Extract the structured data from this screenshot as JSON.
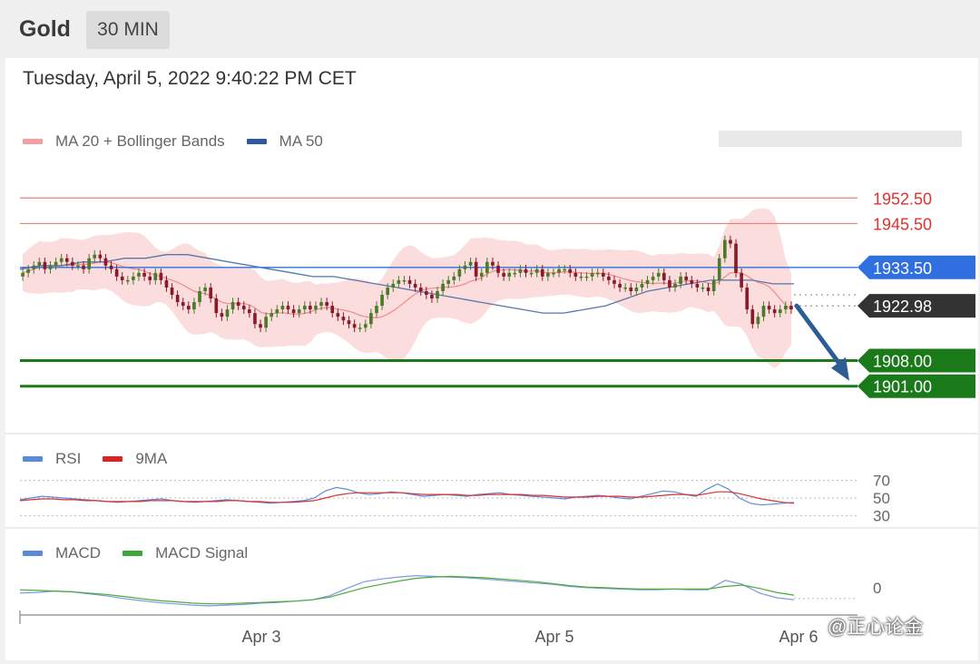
{
  "header": {
    "symbol": "Gold",
    "timeframe": "30 MIN",
    "timestamp": "Tuesday, April 5, 2022 9:40:22 PM CET"
  },
  "legends": {
    "price": [
      {
        "label": "MA 20 + Bollinger Bands",
        "color": "#f08a8a"
      },
      {
        "label": "MA 50",
        "color": "#2b5aa0"
      }
    ],
    "rsi": [
      {
        "label": "RSI",
        "color": "#5b8bd8"
      },
      {
        "label": "9MA",
        "color": "#e02020"
      }
    ],
    "macd": [
      {
        "label": "MACD",
        "color": "#5b8bd8"
      },
      {
        "label": "MACD Signal",
        "color": "#3ba83b"
      }
    ]
  },
  "watermark": "@正心论金",
  "chart_data": {
    "type": "candlestick",
    "x_ticks": [
      "Apr 3",
      "Apr 5",
      "Apr 6"
    ],
    "price_levels": [
      {
        "value": 1952.5,
        "label": "1952.50",
        "style": "resistance",
        "color": "#e8807a"
      },
      {
        "value": 1945.5,
        "label": "1945.50",
        "style": "resistance",
        "color": "#e8807a"
      },
      {
        "value": 1933.5,
        "label": "1933.50",
        "style": "pivot",
        "color": "#2f6fe0"
      },
      {
        "value": 1922.98,
        "label": "1922.98",
        "style": "current",
        "color": "#333333"
      },
      {
        "value": 1908.0,
        "label": "1908.00",
        "style": "support",
        "color": "#1a7a1a"
      },
      {
        "value": 1901.0,
        "label": "1901.00",
        "style": "support",
        "color": "#1a7a1a"
      }
    ],
    "price_axis": {
      "min": 1890,
      "max": 1962
    },
    "candle_close": [
      1932,
      1933,
      1934,
      1935,
      1933,
      1934,
      1935,
      1936,
      1935,
      1934,
      1934,
      1933,
      1936,
      1937,
      1936,
      1934,
      1933,
      1931,
      1930,
      1930,
      1931,
      1932,
      1931,
      1930,
      1932,
      1930,
      1928,
      1926,
      1924,
      1923,
      1922,
      1924,
      1927,
      1928,
      1925,
      1921,
      1920,
      1922,
      1924,
      1923,
      1922,
      1921,
      1918,
      1917,
      1920,
      1921,
      1922,
      1923,
      1922,
      1921,
      1922,
      1923,
      1922,
      1923,
      1924,
      1923,
      1921,
      1920,
      1919,
      1918,
      1917,
      1917,
      1918,
      1921,
      1923,
      1926,
      1928,
      1929,
      1930,
      1930,
      1929,
      1928,
      1927,
      1926,
      1925,
      1927,
      1929,
      1930,
      1931,
      1933,
      1934,
      1935,
      1931,
      1932,
      1935,
      1934,
      1932,
      1931,
      1932,
      1932,
      1933,
      1932,
      1932,
      1933,
      1931,
      1932,
      1932,
      1933,
      1933,
      1932,
      1931,
      1931,
      1931,
      1932,
      1932,
      1931,
      1930,
      1929,
      1928,
      1928,
      1927,
      1928,
      1929,
      1930,
      1931,
      1932,
      1930,
      1928,
      1929,
      1931,
      1930,
      1929,
      1928,
      1928,
      1927,
      1930,
      1936,
      1941,
      1940,
      1932,
      1928,
      1922,
      1918,
      1920,
      1923,
      1922,
      1921,
      1922,
      1923,
      1922
    ],
    "ma50": [
      1933,
      1934,
      1934,
      1935,
      1935,
      1936,
      1936,
      1937,
      1937,
      1936,
      1935,
      1934,
      1933,
      1932,
      1931,
      1931,
      1930,
      1929,
      1928,
      1927,
      1926,
      1925,
      1924,
      1923,
      1922,
      1921,
      1921,
      1922,
      1923,
      1925,
      1927,
      1928,
      1929,
      1930,
      1930,
      1930,
      1929,
      1929
    ],
    "rsi": {
      "levels": [
        70,
        50,
        30
      ],
      "axis": [
        20,
        80
      ],
      "values": [
        48,
        50,
        52,
        51,
        50,
        49,
        48,
        47,
        46,
        45,
        46,
        47,
        48,
        49,
        47,
        46,
        45,
        46,
        47,
        48,
        47,
        46,
        45,
        44,
        45,
        46,
        47,
        50,
        58,
        62,
        60,
        56,
        54,
        55,
        57,
        56,
        54,
        52,
        53,
        54,
        53,
        52,
        54,
        55,
        56,
        54,
        53,
        52,
        51,
        50,
        49,
        51,
        52,
        53,
        52,
        50,
        49,
        52,
        55,
        58,
        57,
        54,
        52,
        60,
        66,
        60,
        50,
        44,
        42,
        43,
        44,
        45
      ],
      "ma": [
        47,
        48,
        49,
        49,
        48,
        48,
        47,
        47,
        46,
        46,
        46,
        46,
        47,
        47,
        47,
        46,
        46,
        46,
        46,
        47,
        47,
        46,
        46,
        45,
        45,
        45,
        46,
        47,
        50,
        53,
        55,
        56,
        56,
        56,
        56,
        56,
        55,
        54,
        54,
        54,
        54,
        53,
        53,
        54,
        54,
        54,
        54,
        53,
        53,
        52,
        51,
        51,
        51,
        52,
        52,
        52,
        51,
        51,
        52,
        53,
        54,
        54,
        53,
        55,
        57,
        57,
        55,
        52,
        49,
        47,
        45,
        44
      ]
    },
    "macd": {
      "zero_label": "0",
      "values": [
        0.5,
        0.6,
        0.8,
        0.7,
        0.4,
        0.1,
        -0.3,
        -0.6,
        -0.9,
        -1.1,
        -1.3,
        -1.4,
        -1.3,
        -1.2,
        -1.0,
        -0.9,
        -0.7,
        -0.5,
        0.1,
        1.2,
        2.2,
        2.6,
        2.9,
        3.1,
        3.0,
        2.9,
        2.8,
        2.6,
        2.4,
        2.2,
        2.0,
        1.8,
        1.5,
        1.3,
        1.2,
        1.1,
        1.0,
        1.0,
        1.1,
        1.0,
        1.0,
        2.4,
        1.8,
        0.5,
        -0.2,
        -0.5
      ],
      "signal": [
        1.0,
        0.9,
        0.8,
        0.7,
        0.5,
        0.3,
        0.0,
        -0.3,
        -0.6,
        -0.8,
        -1.0,
        -1.1,
        -1.1,
        -1.0,
        -0.9,
        -0.8,
        -0.7,
        -0.5,
        -0.1,
        0.6,
        1.3,
        1.8,
        2.3,
        2.7,
        2.9,
        3.0,
        2.9,
        2.8,
        2.6,
        2.4,
        2.2,
        1.9,
        1.6,
        1.4,
        1.3,
        1.2,
        1.1,
        1.1,
        1.1,
        1.1,
        1.1,
        1.5,
        1.7,
        1.2,
        0.6,
        0.2
      ],
      "axis": [
        -2.5,
        4
      ]
    },
    "forecast_arrow": {
      "from_value": 1922.98,
      "to_value": 1901.0,
      "color": "#2d5d97"
    }
  }
}
